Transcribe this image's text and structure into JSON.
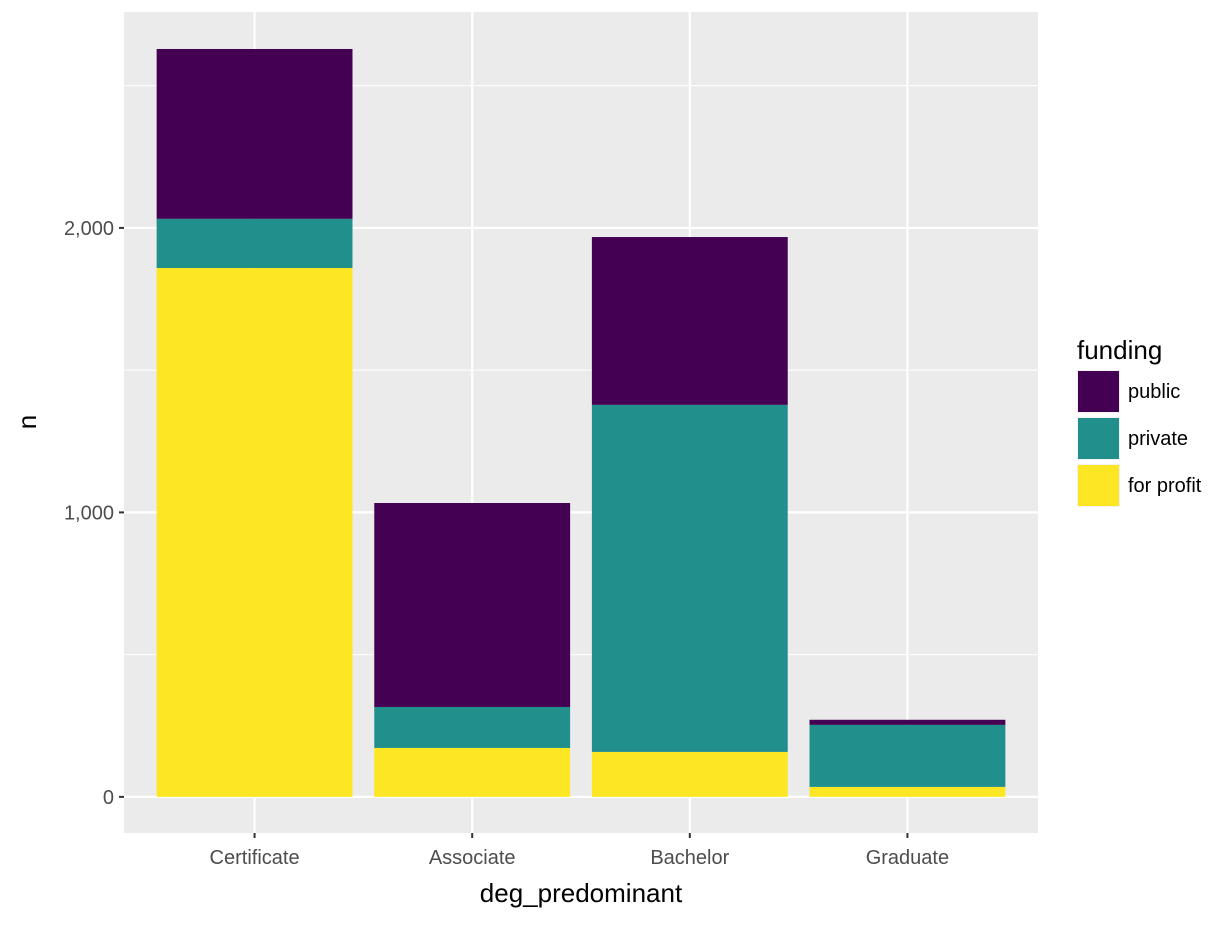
{
  "chart_data": {
    "type": "bar",
    "stacked": true,
    "title": "",
    "xlabel": "deg_predominant",
    "ylabel": "n",
    "categories": [
      "Certificate",
      "Associate",
      "Bachelor",
      "Graduate"
    ],
    "series": [
      {
        "name": "for profit",
        "color": "#FDE725",
        "values": [
          1859,
          172,
          158,
          35
        ]
      },
      {
        "name": "private",
        "color": "#21908C",
        "values": [
          173,
          144,
          1220,
          218
        ]
      },
      {
        "name": "public",
        "color": "#440154",
        "values": [
          597,
          717,
          590,
          18
        ]
      }
    ],
    "ylim": [
      -127,
      2759
    ],
    "yticks": [
      0,
      1000,
      2000
    ],
    "ytick_labels": [
      "0",
      "1,000",
      "2,000"
    ],
    "grid": true,
    "legend": {
      "title": "funding",
      "position": "right",
      "order": [
        "public",
        "private",
        "for profit"
      ]
    }
  }
}
